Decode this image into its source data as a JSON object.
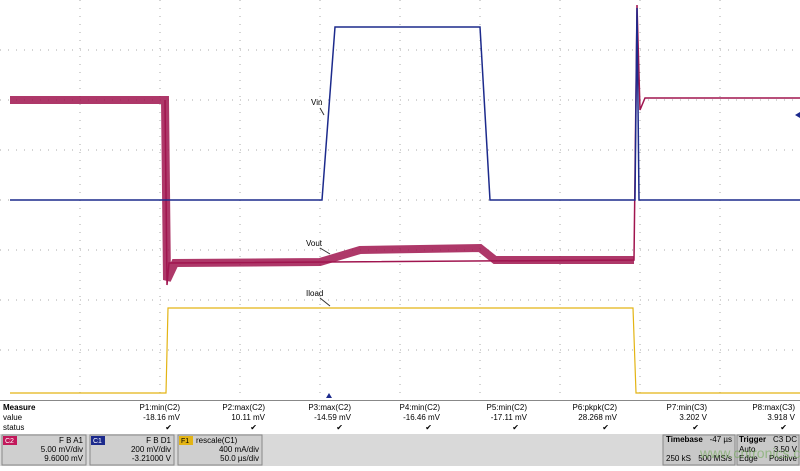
{
  "trace_labels": [
    "Vin",
    "Vout",
    "Iload"
  ],
  "measure": {
    "rows": [
      "Measure",
      "value",
      "status"
    ],
    "params": [
      {
        "name": "P1:min(C2)",
        "value": "-18.16 mV"
      },
      {
        "name": "P2:max(C2)",
        "value": "10.11 mV"
      },
      {
        "name": "P3:max(C2)",
        "value": "-14.59 mV"
      },
      {
        "name": "P4:min(C2)",
        "value": "-16.46 mV"
      },
      {
        "name": "P5:min(C2)",
        "value": "-17.11 mV"
      },
      {
        "name": "P6:pkpk(C2)",
        "value": "28.268 mV"
      },
      {
        "name": "P7:min(C3)",
        "value": "3.202 V"
      },
      {
        "name": "P8:max(C3)",
        "value": "3.918 V"
      }
    ],
    "status": "✔"
  },
  "channels": [
    {
      "tag": "C2",
      "flags": "F B A1",
      "scale": "5.00 mV/div",
      "offset": "9.6000 mV"
    },
    {
      "tag": "C1",
      "flags": "F B D1",
      "scale": "200 mV/div",
      "offset": "-3.21000 V"
    },
    {
      "tag": "F1",
      "title": "rescale(C1)",
      "scale": "400 mA/div",
      "offset": "50.0 µs/div"
    }
  ],
  "timebase": {
    "label": "Timebase",
    "delay": "-47 µs",
    "samples": "250 kS",
    "rate": "500 MS/s"
  },
  "trigger": {
    "label": "Trigger",
    "source": "C3 DC",
    "mode": "Auto",
    "level": "3.50 V",
    "type": "Edge",
    "slope": "Positive"
  },
  "watermark": "www.cntronics.com"
}
